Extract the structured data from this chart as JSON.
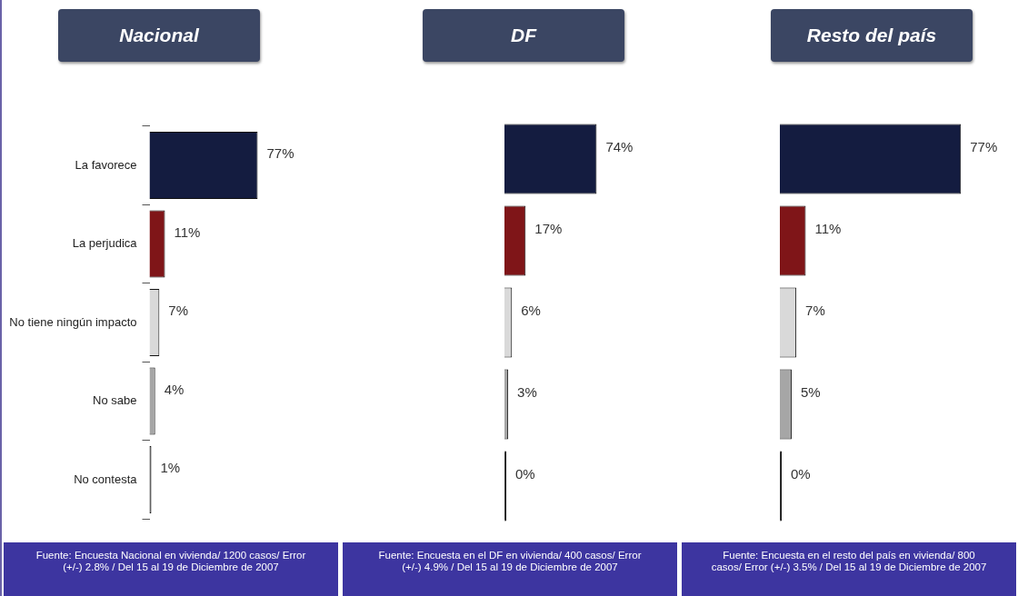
{
  "chart_data": [
    {
      "type": "bar",
      "orientation": "horizontal",
      "title": "Nacional",
      "categories": [
        "La favorece",
        "La perjudica",
        "No tiene ningún impacto",
        "No sabe",
        "No contesta"
      ],
      "values": [
        77,
        11,
        7,
        4,
        1
      ],
      "value_labels": [
        "77%",
        "11%",
        "7%",
        "4%",
        "1%"
      ],
      "colors": [
        "#141c40",
        "#7f1518",
        "#d9d9d9",
        "#a6a6a6",
        "#3a3a3a"
      ],
      "tick_labels": "y",
      "annotations": [
        "Fuente: Encuesta Nacional en vivienda/ 1200 casos/ Error (+/-) 2.8% / Del 15 al 19 de Diciembre de 2007"
      ]
    },
    {
      "type": "bar",
      "orientation": "horizontal",
      "title": "DF",
      "categories": [
        null,
        null,
        null,
        null,
        null
      ],
      "values": [
        74,
        17,
        6,
        3,
        0
      ],
      "value_labels": [
        "74%",
        "17%",
        "6%",
        "3%",
        "0%"
      ],
      "colors": [
        "#141c40",
        "#7f1518",
        "#d9d9d9",
        "#a6a6a6",
        "#3a3a3a"
      ],
      "tick_labels": false,
      "annotations": [
        "Fuente: Encuesta en el DF en vivienda/ 400 casos/ Error (+/-) 4.9% / Del 15 al 19 de Diciembre de 2007"
      ]
    },
    {
      "type": "bar",
      "orientation": "horizontal",
      "title": "Resto del país",
      "categories": [
        null,
        null,
        null,
        null,
        null
      ],
      "values": [
        77,
        11,
        7,
        5,
        0
      ],
      "value_labels": [
        "77%",
        "11%",
        "7%",
        "5%",
        "0%"
      ],
      "colors": [
        "#141c40",
        "#7f1518",
        "#d9d9d9",
        "#a6a6a6",
        "#3a3a3a"
      ],
      "tick_labels": false,
      "annotations": [
        "Fuente: Encuesta en el resto del país en vivienda/ 800 casos/ Error (+/-) 3.5% / Del 15 al 19 de Diciembre de 2007"
      ]
    }
  ]
}
